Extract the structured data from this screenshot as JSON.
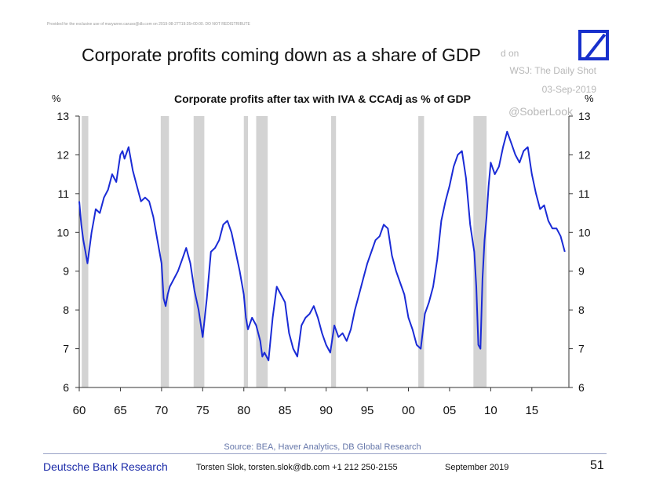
{
  "header": {
    "disclaimer": "Provided for the exclusive use of maryanne.caruso@db.com on 2019-08-27T19:35+00:00. DO NOT REDISTRIBUTE",
    "title": "Corporate profits coming down as a share of GDP",
    "watermark_line1": "d on",
    "watermark_line2": "WSJ: The Daily Shot",
    "watermark_line3": "03-Sep-2019",
    "watermark_line4": "@SoberLook"
  },
  "footer": {
    "source": "Source: BEA, Haver Analytics, DB Global Research",
    "brand": "Deutsche Bank Research",
    "author": "Torsten Slok, torsten.slok@db.com +1 212 250-2155",
    "date": "September 2019",
    "page": "51"
  },
  "colors": {
    "line": "#1a2bd6",
    "recession": "#d3d3d3",
    "brand": "#1730cc"
  },
  "chart_data": {
    "type": "line",
    "title": "Corporate profits after tax with IVA & CCAdj as  % of GDP",
    "ylabel_left": "%",
    "ylabel_right": "%",
    "ylim": [
      6,
      13
    ],
    "xlim": [
      1960,
      2019.5
    ],
    "yticks": [
      6,
      7,
      8,
      9,
      10,
      11,
      12,
      13
    ],
    "xticks": [
      1960,
      1965,
      1970,
      1975,
      1980,
      1985,
      1990,
      1995,
      2000,
      2005,
      2010,
      2015
    ],
    "xtick_labels": [
      "60",
      "65",
      "70",
      "75",
      "80",
      "85",
      "90",
      "95",
      "00",
      "05",
      "10",
      "15"
    ],
    "recessions": [
      [
        1960.3,
        1961.1
      ],
      [
        1969.9,
        1970.9
      ],
      [
        1973.9,
        1975.2
      ],
      [
        1980.0,
        1980.5
      ],
      [
        1981.5,
        1982.9
      ],
      [
        1990.6,
        1991.2
      ],
      [
        2001.2,
        2001.9
      ],
      [
        2007.9,
        2009.5
      ]
    ],
    "series": [
      {
        "x": [
          1960.0,
          1960.25,
          1960.5,
          1960.75,
          1961.0,
          1961.25,
          1961.5,
          1961.75,
          1962.0,
          1962.5,
          1963.0,
          1963.5,
          1964.0,
          1964.5,
          1965.0,
          1965.25,
          1965.5,
          1966.0,
          1966.5,
          1967.0,
          1967.5,
          1968.0,
          1968.5,
          1969.0,
          1969.5,
          1970.0,
          1970.25,
          1970.5,
          1970.75,
          1971.0,
          1971.5,
          1972.0,
          1972.5,
          1973.0,
          1973.5,
          1974.0,
          1974.5,
          1975.0,
          1975.5,
          1976.0,
          1976.5,
          1977.0,
          1977.5,
          1978.0,
          1978.5,
          1979.0,
          1979.5,
          1980.0,
          1980.25,
          1980.5,
          1981.0,
          1981.5,
          1982.0,
          1982.25,
          1982.5,
          1983.0,
          1983.5,
          1984.0,
          1984.5,
          1985.0,
          1985.5,
          1986.0,
          1986.5,
          1987.0,
          1987.5,
          1988.0,
          1988.5,
          1989.0,
          1989.5,
          1990.0,
          1990.5,
          1991.0,
          1991.5,
          1992.0,
          1992.5,
          1993.0,
          1993.5,
          1994.0,
          1994.5,
          1995.0,
          1995.5,
          1996.0,
          1996.5,
          1997.0,
          1997.5,
          1998.0,
          1998.5,
          1999.0,
          1999.5,
          2000.0,
          2000.5,
          2001.0,
          2001.5,
          2002.0,
          2002.5,
          2003.0,
          2003.5,
          2004.0,
          2004.5,
          2005.0,
          2005.5,
          2006.0,
          2006.5,
          2007.0,
          2007.5,
          2008.0,
          2008.25,
          2008.5,
          2008.75,
          2009.0,
          2009.25,
          2009.5,
          2009.75,
          2010.0,
          2010.5,
          2011.0,
          2011.5,
          2012.0,
          2012.5,
          2013.0,
          2013.5,
          2014.0,
          2014.5,
          2015.0,
          2015.5,
          2016.0,
          2016.5,
          2017.0,
          2017.5,
          2018.0,
          2018.5,
          2019.0
        ],
        "values": [
          10.8,
          10.2,
          9.8,
          9.5,
          9.2,
          9.6,
          10.0,
          10.3,
          10.6,
          10.5,
          10.9,
          11.1,
          11.5,
          11.3,
          12.0,
          12.1,
          11.9,
          12.2,
          11.6,
          11.2,
          10.8,
          10.9,
          10.8,
          10.4,
          9.8,
          9.2,
          8.3,
          8.1,
          8.4,
          8.6,
          8.8,
          9.0,
          9.3,
          9.6,
          9.2,
          8.5,
          8.0,
          7.3,
          8.3,
          9.5,
          9.6,
          9.8,
          10.2,
          10.3,
          10.0,
          9.5,
          9.0,
          8.4,
          7.8,
          7.5,
          7.8,
          7.6,
          7.2,
          6.8,
          6.9,
          6.7,
          7.8,
          8.6,
          8.4,
          8.2,
          7.4,
          7.0,
          6.8,
          7.6,
          7.8,
          7.9,
          8.1,
          7.8,
          7.4,
          7.1,
          6.9,
          7.6,
          7.3,
          7.4,
          7.2,
          7.5,
          8.0,
          8.4,
          8.8,
          9.2,
          9.5,
          9.8,
          9.9,
          10.2,
          10.1,
          9.4,
          9.0,
          8.7,
          8.4,
          7.8,
          7.5,
          7.1,
          7.0,
          7.9,
          8.2,
          8.6,
          9.3,
          10.3,
          10.8,
          11.2,
          11.7,
          12.0,
          12.1,
          11.4,
          10.2,
          9.5,
          8.6,
          7.1,
          7.0,
          8.8,
          9.8,
          10.4,
          11.2,
          11.8,
          11.5,
          11.7,
          12.2,
          12.6,
          12.3,
          12.0,
          11.8,
          12.1,
          12.2,
          11.5,
          11.0,
          10.6,
          10.7,
          10.3,
          10.1,
          10.1,
          9.9,
          9.5
        ]
      }
    ]
  }
}
